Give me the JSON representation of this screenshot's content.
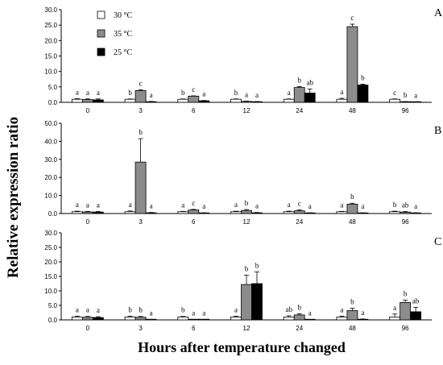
{
  "ylabel": "Relative expression ratio",
  "xlabel": "Hours after temperature changed",
  "legend": {
    "entries": [
      {
        "label": "30 °C",
        "color": "#ffffff"
      },
      {
        "label": "35 °C",
        "color": "#8c8c8c"
      },
      {
        "label": "25 °C",
        "color": "#000000"
      }
    ]
  },
  "chart_data": [
    {
      "panel": "A",
      "type": "bar",
      "categories": [
        "0",
        "3",
        "6",
        "12",
        "24",
        "48",
        "96"
      ],
      "ylim": [
        0,
        30
      ],
      "yticks": [
        "0.0",
        "5.0",
        "10.0",
        "15.0",
        "20.0",
        "25.0",
        "30.0"
      ],
      "series": [
        {
          "name": "30 °C",
          "color": "#ffffff",
          "values": [
            1.0,
            1.0,
            1.0,
            1.0,
            1.0,
            1.0,
            1.0
          ],
          "errors": [
            0.2,
            0.1,
            0.1,
            0.1,
            0.1,
            0.3,
            0.1
          ],
          "letters": [
            "a",
            "b",
            "b",
            "b",
            "a",
            "a",
            "c"
          ]
        },
        {
          "name": "35 °C",
          "color": "#8c8c8c",
          "values": [
            0.9,
            3.8,
            2.0,
            0.3,
            4.8,
            24.5,
            0.2
          ],
          "errors": [
            0.2,
            0.3,
            0.1,
            0.1,
            0.3,
            0.8,
            0.05
          ],
          "letters": [
            "a",
            "c",
            "c",
            "a",
            "b",
            "c",
            "b"
          ]
        },
        {
          "name": "25 °C",
          "color": "#000000",
          "values": [
            0.8,
            0.2,
            0.5,
            0.2,
            3.0,
            5.6,
            0.1
          ],
          "errors": [
            0.3,
            0.1,
            0.1,
            0.05,
            1.3,
            0.3,
            0.05
          ],
          "letters": [
            "a",
            "a",
            "a",
            "a",
            "ab",
            "b",
            "a"
          ]
        }
      ]
    },
    {
      "panel": "B",
      "type": "bar",
      "categories": [
        "0",
        "3",
        "6",
        "12",
        "24",
        "48",
        "96"
      ],
      "ylim": [
        0,
        50
      ],
      "yticks": [
        "0.0",
        "10.0",
        "20.0",
        "30.0",
        "40.0",
        "50.0"
      ],
      "series": [
        {
          "name": "30 °C",
          "color": "#ffffff",
          "values": [
            1.0,
            1.0,
            1.0,
            1.0,
            1.0,
            1.0,
            1.0
          ],
          "errors": [
            0.3,
            0.4,
            0.2,
            0.3,
            0.3,
            0.2,
            0.3
          ],
          "letters": [
            "a",
            "a",
            "a",
            "a",
            "a",
            "a",
            "b"
          ]
        },
        {
          "name": "35 °C",
          "color": "#8c8c8c",
          "values": [
            0.9,
            28.5,
            2.0,
            1.7,
            1.5,
            5.2,
            0.8
          ],
          "errors": [
            0.3,
            13.0,
            0.3,
            0.5,
            0.5,
            0.5,
            0.3
          ],
          "letters": [
            "a",
            "b",
            "c",
            "b",
            "c",
            "b",
            "ab"
          ]
        },
        {
          "name": "25 °C",
          "color": "#000000",
          "values": [
            0.8,
            0.4,
            0.3,
            0.4,
            0.3,
            0.3,
            0.3
          ],
          "errors": [
            0.3,
            0.2,
            0.1,
            0.2,
            0.1,
            0.1,
            0.1
          ],
          "letters": [
            "a",
            "a",
            "a",
            "a",
            "a",
            "a",
            "a"
          ]
        }
      ]
    },
    {
      "panel": "C",
      "type": "bar",
      "categories": [
        "0",
        "3",
        "6",
        "12",
        "24",
        "48",
        "96"
      ],
      "ylim": [
        0,
        30
      ],
      "yticks": [
        "0.0",
        "5.0",
        "10.0",
        "15.0",
        "20.0",
        "25.0",
        "30.0"
      ],
      "series": [
        {
          "name": "30 °C",
          "color": "#ffffff",
          "values": [
            1.0,
            1.0,
            1.0,
            1.0,
            1.0,
            1.0,
            1.0
          ],
          "errors": [
            0.3,
            0.3,
            0.2,
            0.3,
            0.4,
            0.3,
            1.0
          ],
          "letters": [
            "a",
            "b",
            "b",
            "a",
            "ab",
            "a",
            "a"
          ]
        },
        {
          "name": "35 °C",
          "color": "#8c8c8c",
          "values": [
            0.9,
            0.9,
            0.1,
            12.2,
            1.7,
            3.2,
            6.0
          ],
          "errors": [
            0.3,
            0.3,
            0.05,
            3.2,
            0.4,
            0.8,
            0.8
          ],
          "letters": [
            "a",
            "b",
            "a",
            "b",
            "b",
            "b",
            "b"
          ]
        },
        {
          "name": "25 °C",
          "color": "#000000",
          "values": [
            0.8,
            0.1,
            0.1,
            12.5,
            0.1,
            0.2,
            2.8
          ],
          "errors": [
            0.3,
            0.05,
            0.05,
            4.0,
            0.05,
            0.1,
            1.5
          ],
          "letters": [
            "a",
            "a",
            "a",
            "b",
            "a",
            "a",
            "ab"
          ]
        }
      ]
    }
  ]
}
